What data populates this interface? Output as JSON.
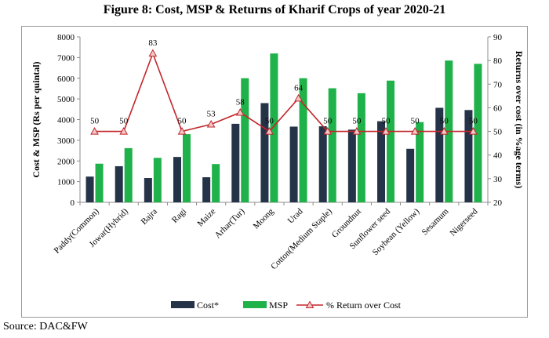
{
  "figure_title": "Figure 8: Cost, MSP & Returns of Kharif Crops of year 2020-21",
  "source_note": "Source: DAC&FW",
  "colors": {
    "cost": "#253349",
    "msp": "#1fb14a",
    "return_line": "#c3262b",
    "axis": "#8c8c8c"
  },
  "chart_data": {
    "type": "bar",
    "title": "Figure 8: Cost, MSP & Returns of Kharif Crops of year 2020-21",
    "categories": [
      "Paddy(Common)",
      "Jowar(Hybrid)",
      "Bajra",
      "Ragi",
      "Maize",
      "Arhar(Tur)",
      "Moong",
      "Urad",
      "Cotton(Medium Staple)",
      "Groundnut",
      "Sunflower seed",
      "Soybean (Yellow)",
      "Sesamum",
      "Nigerseed"
    ],
    "series": [
      {
        "name": "Cost*",
        "axis": "left",
        "kind": "bar",
        "values": [
          1245,
          1746,
          1175,
          2194,
          1213,
          3796,
          4797,
          3660,
          3676,
          3515,
          3921,
          2587,
          4570,
          4462
        ]
      },
      {
        "name": "MSP",
        "axis": "left",
        "kind": "bar",
        "values": [
          1868,
          2620,
          2150,
          3295,
          1850,
          6000,
          7196,
          6000,
          5515,
          5275,
          5885,
          3880,
          6855,
          6695
        ]
      },
      {
        "name": "% Return over Cost",
        "axis": "right",
        "kind": "line",
        "values": [
          50,
          50,
          83,
          50,
          53,
          58,
          50,
          64,
          50,
          50,
          50,
          50,
          50,
          50
        ]
      }
    ],
    "data_labels": [
      "50",
      "50",
      "83",
      "50",
      "53",
      "58",
      "50",
      "64",
      "50",
      "50",
      "50",
      "50",
      "50",
      "50"
    ],
    "ylabel": "Cost & MSP (Rs per quintal)",
    "ylim": [
      0,
      8000
    ],
    "yticks": [
      "0",
      "1000",
      "2000",
      "3000",
      "4000",
      "5000",
      "6000",
      "7000",
      "8000"
    ],
    "y2label": "Returns over cost (in %age terms)",
    "y2lim": [
      20,
      90
    ],
    "y2ticks": [
      "20",
      "30",
      "40",
      "50",
      "60",
      "70",
      "80",
      "90"
    ],
    "legend": [
      "Cost*",
      "MSP",
      "% Return over Cost"
    ],
    "legend_position": "bottom",
    "grid": false
  }
}
